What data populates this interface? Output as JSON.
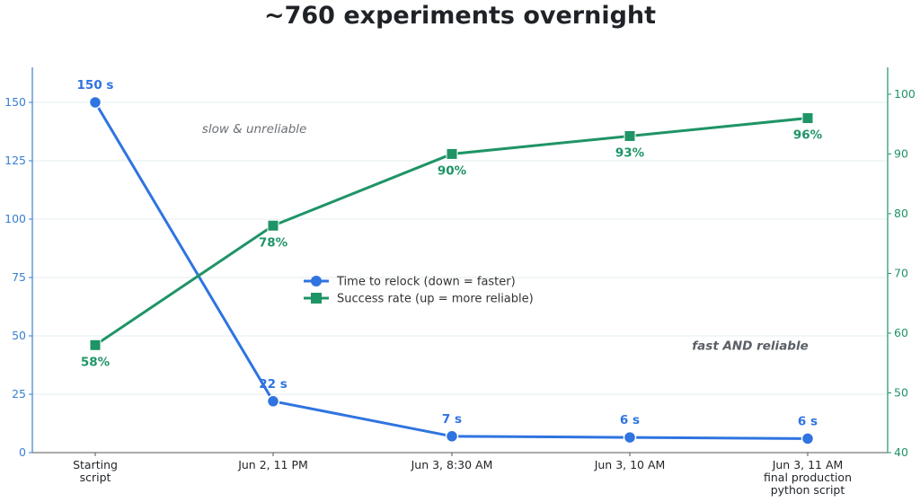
{
  "chart_data": {
    "type": "line",
    "title": "~760 experiments overnight",
    "categories": [
      [
        "Starting",
        "script"
      ],
      [
        "Jun 2, 11 PM"
      ],
      [
        "Jun 3, 8:30 AM"
      ],
      [
        "Jun 3, 10 AM"
      ],
      [
        "Jun 3, 11 AM",
        "final production",
        "python script"
      ]
    ],
    "series": [
      {
        "name": "Time to relock (down = faster)",
        "axis": "left",
        "color": "#2f74e0",
        "marker": "circle",
        "values": [
          150,
          22,
          7,
          6.5,
          6
        ],
        "labels": [
          "150 s",
          "22 s",
          "7 s",
          "6 s",
          "6 s"
        ]
      },
      {
        "name": "Success rate (up = more reliable)",
        "axis": "right",
        "color": "#1f9466",
        "marker": "square",
        "values": [
          58,
          78,
          90,
          93,
          96
        ],
        "labels": [
          "58%",
          "78%",
          "90%",
          "93%",
          "96%"
        ]
      }
    ],
    "y_left": {
      "ylim": [
        0,
        165
      ],
      "ticks": [
        0,
        25,
        50,
        75,
        100,
        125,
        150
      ],
      "color": "#3a7fd0"
    },
    "y_right": {
      "ylim": [
        40,
        104.5
      ],
      "ticks": [
        40,
        50,
        60,
        70,
        80,
        90,
        100
      ],
      "color": "#1f9466"
    },
    "grid": true,
    "legend": "center",
    "annotations": [
      {
        "text": "slow & unreliable",
        "x": 0.6,
        "y_left": 137,
        "style": "italic"
      },
      {
        "text": "fast AND reliable",
        "x": 3.35,
        "y_left": 44,
        "style": "bold-italic"
      }
    ]
  }
}
